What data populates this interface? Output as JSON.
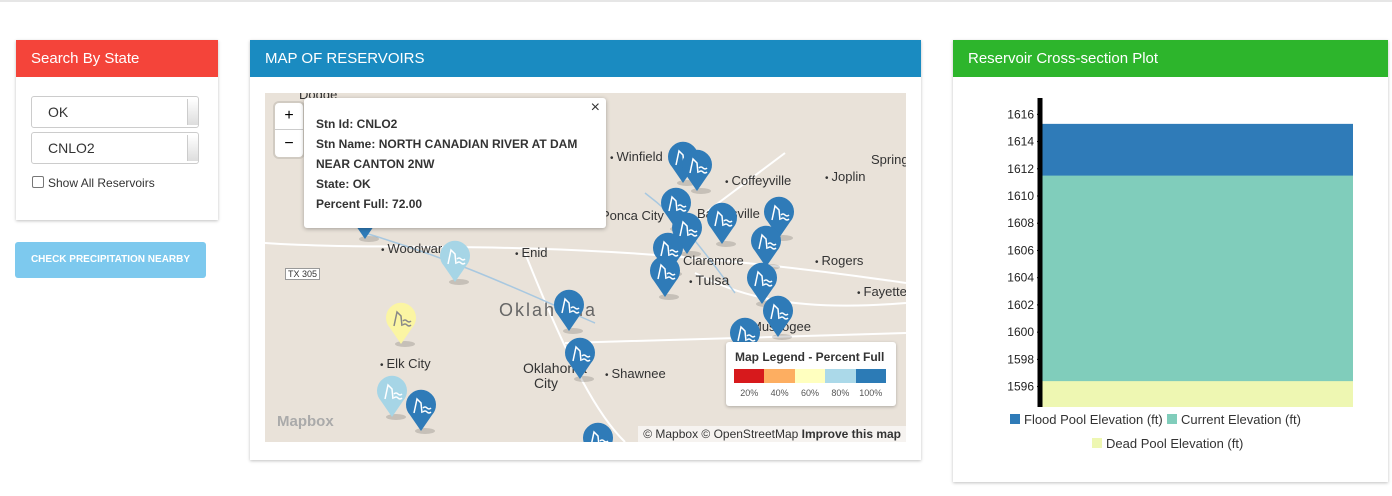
{
  "search_panel": {
    "title": "Search By State",
    "state": "OK",
    "station": "CNLO2",
    "checkbox_label": "Show All Reservoirs"
  },
  "button": "CHECK PRECIPITATION NEARBY",
  "map_panel": {
    "title": "MAP OF RESERVOIRS",
    "zoom_in": "+",
    "zoom_out": "−",
    "close": "×",
    "popup": [
      {
        "label": "Stn Id:",
        "value": "CNLO2"
      },
      {
        "label": "Stn Name:",
        "value": "NORTH CANADIAN RIVER AT DAM NEAR CANTON 2NW"
      },
      {
        "label": "State:",
        "value": "OK"
      },
      {
        "label": "Percent Full:",
        "value": "72.00"
      }
    ],
    "places": [
      "Dodge",
      "Winfield",
      "Spring",
      "Coffeyville",
      "Joplin",
      "Ponca City",
      "Bartlesville",
      "Woodward",
      "Enid",
      "Claremore",
      "Tulsa",
      "Rogers",
      "Fayette",
      "Oklahoma",
      "Muskogee",
      "Elk City",
      "Oklahoma City",
      "Shawnee",
      "TX 305",
      "Mapbox"
    ],
    "legend": {
      "title": "Map Legend - Percent Full",
      "colors": [
        "#d7191c",
        "#fdae61",
        "#ffffbf",
        "#abd9e9",
        "#2c7bb6"
      ],
      "labels": [
        "20%",
        "40%",
        "60%",
        "80%",
        "100%"
      ]
    },
    "attribution": "© Mapbox © OpenStreetMap",
    "improve": "Improve this map"
  },
  "plot_panel": {
    "title": "Reservoir Cross-section Plot"
  },
  "chart_data": {
    "type": "bar",
    "ylim": [
      1594.5,
      1617.2
    ],
    "yticks": [
      1596,
      1598,
      1600,
      1602,
      1604,
      1606,
      1608,
      1610,
      1612,
      1614,
      1616
    ],
    "series": [
      {
        "name": "Flood Pool Elevation (ft)",
        "color": "#2f7bb8",
        "values": [
          1615.3
        ]
      },
      {
        "name": "Current Elevation (ft)",
        "color": "#80cdbb",
        "values": [
          1611.5
        ]
      },
      {
        "name": "Dead Pool Elevation (ft)",
        "color": "#eef7b2",
        "values": [
          1596.4
        ]
      }
    ]
  }
}
